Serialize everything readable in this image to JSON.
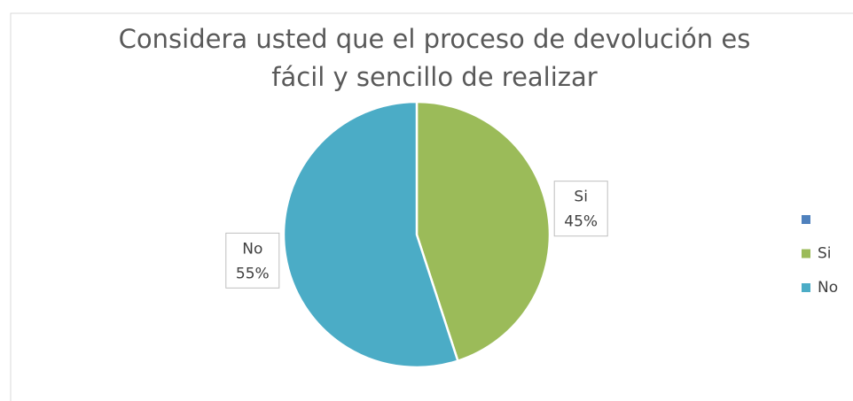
{
  "chart_data": {
    "type": "pie",
    "title": [
      "Considera usted que el proceso de devolución es",
      "fácil y sencillo de realizar"
    ],
    "categories": [
      null,
      "Si",
      "No"
    ],
    "values": [
      0,
      45,
      55
    ],
    "value_labels": [
      null,
      "45%",
      "55%"
    ],
    "colors": [
      "#4f81bd",
      "#9bbb59",
      "#4bacc6"
    ],
    "legend": "right"
  }
}
